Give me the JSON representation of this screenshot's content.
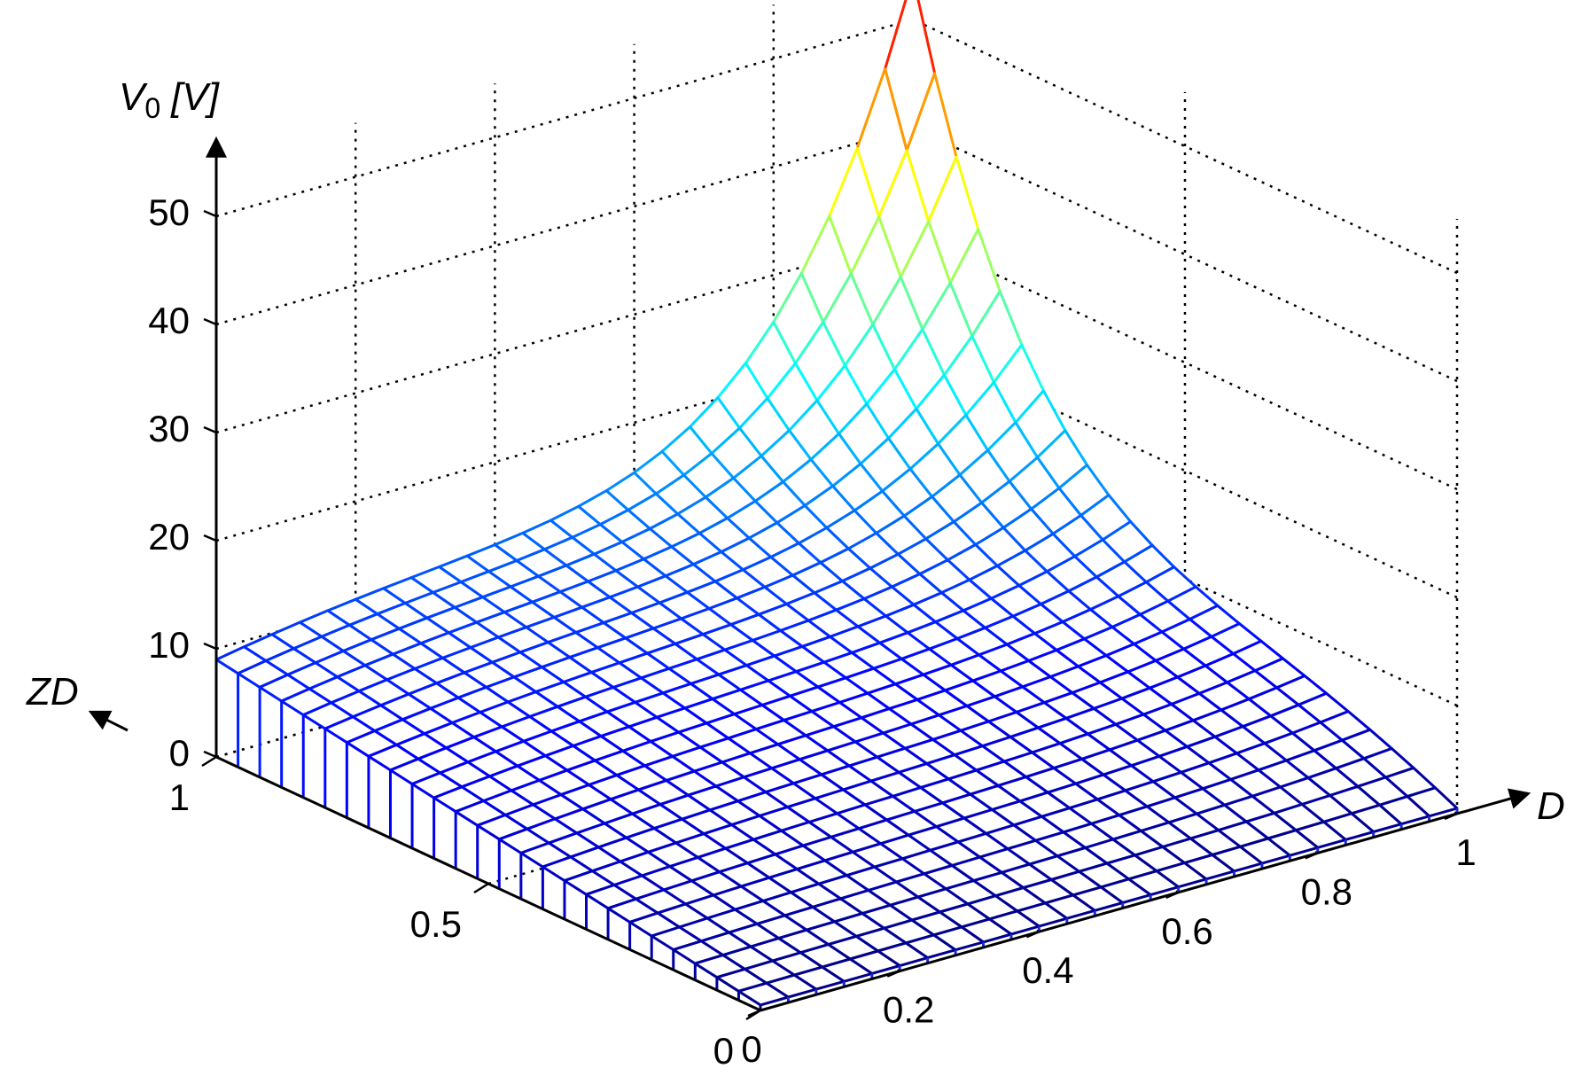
{
  "chart_data": {
    "type": "surface3d",
    "z_axis": {
      "label_main": "V",
      "label_subscript": "0",
      "label_unit": "[V]",
      "ticks": [
        "0",
        "10",
        "20",
        "30",
        "40",
        "50"
      ],
      "range": [
        0,
        55
      ]
    },
    "x_axis": {
      "label": "D",
      "ticks": [
        "0",
        "0.2",
        "0.4",
        "0.6",
        "0.8",
        "1"
      ],
      "range": [
        0,
        1
      ]
    },
    "y_axis": {
      "label": "ZD",
      "ticks": [
        "0",
        "0.5",
        "1"
      ],
      "range": [
        0,
        1
      ]
    },
    "grid": true,
    "colormap": "jet",
    "sample_points": [
      {
        "D": 0,
        "ZD": 0,
        "V0": 0
      },
      {
        "D": 0,
        "ZD": 1,
        "V0": 9
      },
      {
        "D": 1,
        "ZD": 0,
        "V0": 0
      },
      {
        "D": 0.5,
        "ZD": 0.5,
        "V0": 10
      },
      {
        "D": 1,
        "ZD": 1,
        "V0": 55
      }
    ],
    "colors": {
      "axis": "#000000",
      "grid": "#000000",
      "back": "#c8cdd2"
    }
  }
}
